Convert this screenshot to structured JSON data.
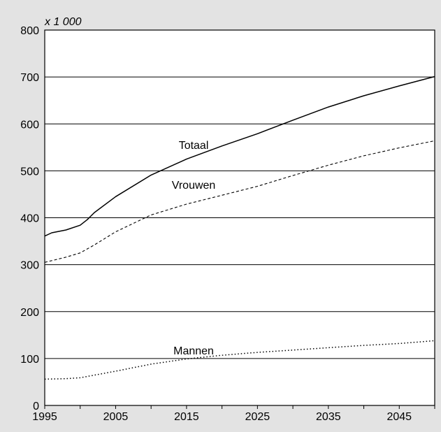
{
  "chart_data": {
    "type": "line",
    "title": "",
    "unit_label": "x 1 000",
    "xlabel": "",
    "ylabel": "",
    "xlim": [
      1995,
      2050
    ],
    "ylim": [
      0,
      800
    ],
    "x_ticks": [
      1995,
      2005,
      2015,
      2025,
      2035,
      2045
    ],
    "x_minor_step": 5,
    "y_ticks": [
      0,
      100,
      200,
      300,
      400,
      500,
      600,
      700,
      800
    ],
    "grid": "horizontal",
    "legend": "none",
    "background": "#e3e3e3",
    "plot_background": "#ffffff",
    "series": [
      {
        "name": "Totaal",
        "style": "solid",
        "label_at": [
          2016,
          547
        ],
        "x": [
          1995,
          1996,
          1998,
          2000,
          2001,
          2002,
          2005,
          2010,
          2015,
          2020,
          2025,
          2030,
          2035,
          2040,
          2045,
          2050
        ],
        "values": [
          361,
          368,
          374,
          384,
          396,
          411,
          445,
          491,
          525,
          553,
          579,
          608,
          636,
          660,
          681,
          701
        ]
      },
      {
        "name": "Vrouwen",
        "style": "dashed",
        "label_at": [
          2016,
          462
        ],
        "x": [
          1995,
          1998,
          2000,
          2002,
          2005,
          2010,
          2015,
          2020,
          2025,
          2030,
          2035,
          2040,
          2045,
          2050
        ],
        "values": [
          305,
          316,
          325,
          342,
          370,
          406,
          429,
          448,
          467,
          490,
          512,
          532,
          549,
          564
        ]
      },
      {
        "name": "Mannen",
        "style": "dotted",
        "label_at": [
          2016,
          109
        ],
        "x": [
          1995,
          1998,
          2000,
          2005,
          2010,
          2015,
          2020,
          2025,
          2030,
          2035,
          2040,
          2045,
          2050
        ],
        "values": [
          56,
          57,
          59,
          73,
          88,
          99,
          107,
          113,
          118,
          123,
          128,
          132,
          138
        ]
      }
    ]
  }
}
